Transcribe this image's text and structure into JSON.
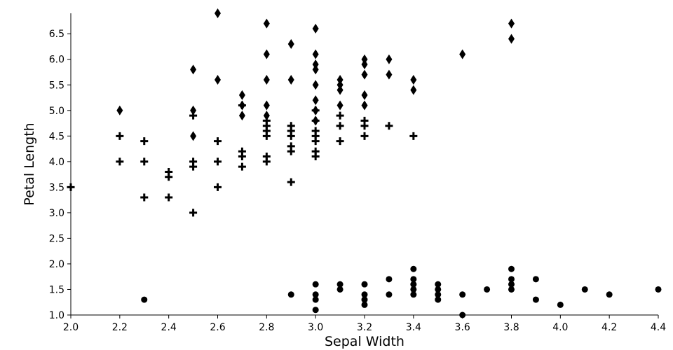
{
  "chart_data": {
    "type": "scatter",
    "title": "",
    "xlabel": "Sepal Width",
    "ylabel": "Petal Length",
    "xlim": [
      2.0,
      4.4
    ],
    "ylim": [
      1.0,
      6.9
    ],
    "xticks": [
      "2.0",
      "2.2",
      "2.4",
      "2.6",
      "2.8",
      "3.0",
      "3.2",
      "3.4",
      "3.6",
      "3.8",
      "4.0",
      "4.2",
      "4.4"
    ],
    "yticks": [
      "1.0",
      "1.5",
      "2.0",
      "2.5",
      "3.0",
      "3.5",
      "4.0",
      "4.5",
      "5.0",
      "5.5",
      "6.0",
      "6.5"
    ],
    "grid": false,
    "legend": "none",
    "color": "#000000",
    "series": [
      {
        "marker": "circle",
        "points": [
          [
            2.3,
            1.3
          ],
          [
            2.9,
            1.4
          ],
          [
            3.0,
            1.1
          ],
          [
            3.0,
            1.3
          ],
          [
            3.0,
            1.4
          ],
          [
            3.0,
            1.6
          ],
          [
            3.1,
            1.5
          ],
          [
            3.1,
            1.6
          ],
          [
            3.2,
            1.2
          ],
          [
            3.2,
            1.3
          ],
          [
            3.2,
            1.4
          ],
          [
            3.2,
            1.6
          ],
          [
            3.3,
            1.4
          ],
          [
            3.3,
            1.7
          ],
          [
            3.4,
            1.4
          ],
          [
            3.4,
            1.5
          ],
          [
            3.4,
            1.6
          ],
          [
            3.4,
            1.7
          ],
          [
            3.4,
            1.9
          ],
          [
            3.5,
            1.3
          ],
          [
            3.5,
            1.4
          ],
          [
            3.5,
            1.5
          ],
          [
            3.5,
            1.6
          ],
          [
            3.6,
            1.0
          ],
          [
            3.6,
            1.4
          ],
          [
            3.7,
            1.5
          ],
          [
            3.8,
            1.5
          ],
          [
            3.8,
            1.6
          ],
          [
            3.8,
            1.7
          ],
          [
            3.8,
            1.9
          ],
          [
            3.9,
            1.3
          ],
          [
            3.9,
            1.7
          ],
          [
            4.0,
            1.2
          ],
          [
            4.1,
            1.5
          ],
          [
            4.2,
            1.4
          ],
          [
            4.4,
            1.5
          ]
        ]
      },
      {
        "marker": "plus",
        "points": [
          [
            2.0,
            3.5
          ],
          [
            2.2,
            4.0
          ],
          [
            2.2,
            4.5
          ],
          [
            2.3,
            3.3
          ],
          [
            2.3,
            4.0
          ],
          [
            2.3,
            4.4
          ],
          [
            2.4,
            3.3
          ],
          [
            2.4,
            3.7
          ],
          [
            2.4,
            3.8
          ],
          [
            2.5,
            3.0
          ],
          [
            2.5,
            3.9
          ],
          [
            2.5,
            4.0
          ],
          [
            2.5,
            4.9
          ],
          [
            2.6,
            3.5
          ],
          [
            2.6,
            4.0
          ],
          [
            2.6,
            4.4
          ],
          [
            2.7,
            3.9
          ],
          [
            2.7,
            4.1
          ],
          [
            2.7,
            4.2
          ],
          [
            2.7,
            5.1
          ],
          [
            2.8,
            4.0
          ],
          [
            2.8,
            4.1
          ],
          [
            2.8,
            4.5
          ],
          [
            2.8,
            4.6
          ],
          [
            2.8,
            4.7
          ],
          [
            2.8,
            4.8
          ],
          [
            2.9,
            3.6
          ],
          [
            2.9,
            4.2
          ],
          [
            2.9,
            4.3
          ],
          [
            2.9,
            4.5
          ],
          [
            2.9,
            4.6
          ],
          [
            2.9,
            4.7
          ],
          [
            3.0,
            4.1
          ],
          [
            3.0,
            4.2
          ],
          [
            3.0,
            4.4
          ],
          [
            3.0,
            4.5
          ],
          [
            3.0,
            4.6
          ],
          [
            3.0,
            4.8
          ],
          [
            3.0,
            5.0
          ],
          [
            3.1,
            4.4
          ],
          [
            3.1,
            4.7
          ],
          [
            3.1,
            4.9
          ],
          [
            3.2,
            4.5
          ],
          [
            3.2,
            4.7
          ],
          [
            3.2,
            4.8
          ],
          [
            3.3,
            4.7
          ],
          [
            3.4,
            4.5
          ]
        ]
      },
      {
        "marker": "diamond",
        "points": [
          [
            2.2,
            5.0
          ],
          [
            2.5,
            4.5
          ],
          [
            2.5,
            5.0
          ],
          [
            2.5,
            5.8
          ],
          [
            2.6,
            5.6
          ],
          [
            2.6,
            6.9
          ],
          [
            2.7,
            4.9
          ],
          [
            2.7,
            5.1
          ],
          [
            2.7,
            5.3
          ],
          [
            2.8,
            4.9
          ],
          [
            2.8,
            5.1
          ],
          [
            2.8,
            5.6
          ],
          [
            2.8,
            6.1
          ],
          [
            2.8,
            6.7
          ],
          [
            2.9,
            5.6
          ],
          [
            2.9,
            6.3
          ],
          [
            3.0,
            4.8
          ],
          [
            3.0,
            5.0
          ],
          [
            3.0,
            5.2
          ],
          [
            3.0,
            5.5
          ],
          [
            3.0,
            5.8
          ],
          [
            3.0,
            5.9
          ],
          [
            3.0,
            6.1
          ],
          [
            3.0,
            6.6
          ],
          [
            3.1,
            5.1
          ],
          [
            3.1,
            5.4
          ],
          [
            3.1,
            5.5
          ],
          [
            3.1,
            5.6
          ],
          [
            3.2,
            5.1
          ],
          [
            3.2,
            5.3
          ],
          [
            3.2,
            5.7
          ],
          [
            3.2,
            5.9
          ],
          [
            3.2,
            6.0
          ],
          [
            3.3,
            5.7
          ],
          [
            3.3,
            6.0
          ],
          [
            3.4,
            5.4
          ],
          [
            3.4,
            5.6
          ],
          [
            3.6,
            6.1
          ],
          [
            3.8,
            6.4
          ],
          [
            3.8,
            6.7
          ]
        ]
      }
    ]
  }
}
